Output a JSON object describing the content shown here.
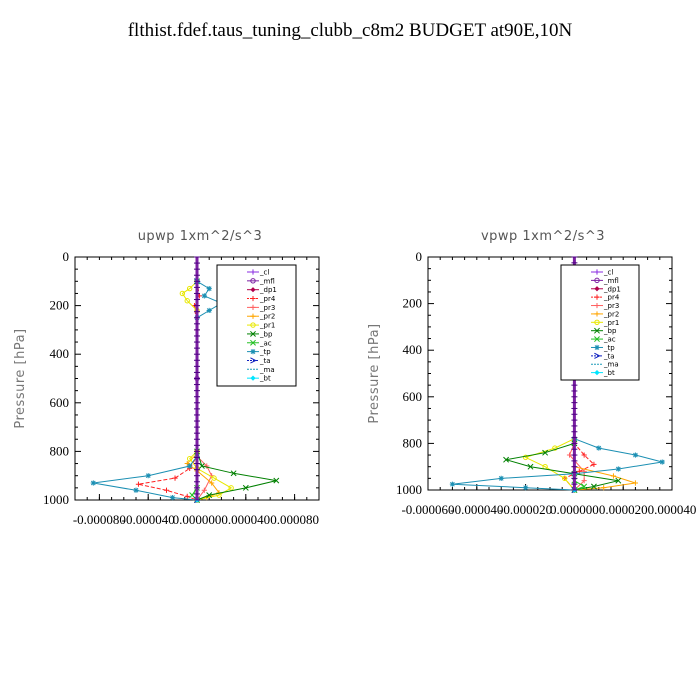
{
  "title": "flthist.fdef.taus_tuning_clubb_c8m2  BUDGET at90E,10N",
  "chart_data": [
    {
      "type": "line",
      "title": "upwp   1xm^2/s^3",
      "ylabel": "Pressure [hPa]",
      "ylim": [
        1000,
        0
      ],
      "xlim": [
        -0.0001,
        0.0001
      ],
      "x_ticks": [
        -8e-05,
        -4e-05,
        0.0,
        4e-05,
        8e-05
      ],
      "x_tick_labels": [
        "-0.000080",
        "-0.000040",
        "0.000000",
        "0.000040",
        "0.000080"
      ],
      "y_ticks": [
        0,
        200,
        400,
        600,
        800,
        1000
      ],
      "y_tick_labels": [
        "0",
        "200",
        "400",
        "600",
        "800",
        "1000"
      ],
      "legend_position": "top-right",
      "series": [
        {
          "name": "_cl",
          "color": "#8a2be2",
          "marker": "plus",
          "dash": "",
          "points": [
            [
              0,
              100
            ],
            [
              0,
              500
            ],
            [
              0,
              1000
            ]
          ]
        },
        {
          "name": "_mfl",
          "color": "#7a1fa2",
          "marker": "circle",
          "dash": "",
          "points": [
            [
              0,
              100
            ],
            [
              0,
              500
            ],
            [
              0,
              1000
            ]
          ]
        },
        {
          "name": "_dp1",
          "color": "#b0004c",
          "marker": "diamond",
          "dash": "",
          "points": [
            [
              0,
              100
            ],
            [
              0,
              800
            ],
            [
              0,
              1000
            ]
          ]
        },
        {
          "name": "_pr4",
          "color": "#ff2020",
          "marker": "plus",
          "dash": "4,2",
          "points": [
            [
              0,
              100
            ],
            [
              2e-06,
              160
            ],
            [
              -2e-06,
              200
            ],
            [
              0,
              300
            ],
            [
              0,
              820
            ],
            [
              -6e-06,
              870
            ],
            [
              -1.8e-05,
              910
            ],
            [
              -4.8e-05,
              935
            ],
            [
              -2.5e-05,
              960
            ],
            [
              -8e-06,
              985
            ],
            [
              0,
              1000
            ]
          ]
        },
        {
          "name": "_pr3",
          "color": "#ff6060",
          "marker": "plus",
          "dash": "",
          "points": [
            [
              0,
              100
            ],
            [
              0,
              820
            ],
            [
              8e-06,
              860
            ],
            [
              1.2e-05,
              900
            ],
            [
              6e-06,
              960
            ],
            [
              0,
              1000
            ]
          ]
        },
        {
          "name": "_pr2",
          "color": "#ffa500",
          "marker": "plus",
          "dash": "",
          "points": [
            [
              0,
              100
            ],
            [
              0,
              810
            ],
            [
              -8e-06,
              850
            ],
            [
              0,
              880
            ],
            [
              1.2e-05,
              930
            ],
            [
              1.8e-05,
              970
            ],
            [
              8e-06,
              990
            ],
            [
              0,
              1000
            ]
          ]
        },
        {
          "name": "_pr1",
          "color": "#e8e800",
          "marker": "circle",
          "dash": "",
          "points": [
            [
              0,
              100
            ],
            [
              -6e-06,
              130
            ],
            [
              -1.2e-05,
              150
            ],
            [
              -8e-06,
              180
            ],
            [
              0,
              220
            ],
            [
              0,
              800
            ],
            [
              -6e-06,
              830
            ],
            [
              0,
              870
            ],
            [
              1.4e-05,
              910
            ],
            [
              2.8e-05,
              950
            ],
            [
              1.8e-05,
              980
            ],
            [
              0,
              1000
            ]
          ]
        },
        {
          "name": "_bp",
          "color": "#008000",
          "marker": "cross",
          "dash": "",
          "points": [
            [
              0,
              100
            ],
            [
              0,
              800
            ],
            [
              4e-06,
              860
            ],
            [
              3e-05,
              890
            ],
            [
              6.5e-05,
              920
            ],
            [
              4e-05,
              950
            ],
            [
              1e-05,
              980
            ],
            [
              0,
              1000
            ]
          ]
        },
        {
          "name": "_ac",
          "color": "#22c022",
          "marker": "cross",
          "dash": "",
          "points": [
            [
              0,
              100
            ],
            [
              0,
              950
            ],
            [
              -4e-06,
              980
            ],
            [
              0,
              1000
            ]
          ]
        },
        {
          "name": "_tp",
          "color": "#1b8fb3",
          "marker": "star",
          "dash": "",
          "points": [
            [
              0,
              100
            ],
            [
              1e-05,
              130
            ],
            [
              6e-06,
              160
            ],
            [
              2e-05,
              190
            ],
            [
              1e-05,
              220
            ],
            [
              0,
              250
            ],
            [
              0,
              820
            ],
            [
              -6e-06,
              860
            ],
            [
              -4e-05,
              900
            ],
            [
              -8.5e-05,
              930
            ],
            [
              -5e-05,
              960
            ],
            [
              -2e-05,
              990
            ],
            [
              0,
              1000
            ]
          ]
        },
        {
          "name": "_ta",
          "color": "#1020c0",
          "marker": "arrow",
          "dash": "4,2",
          "points": [
            [
              0,
              100
            ],
            [
              0,
              1000
            ]
          ]
        },
        {
          "name": "_ma",
          "color": "#1f9bb8",
          "marker": "",
          "dash": "6,3",
          "points": [
            [
              0,
              100
            ],
            [
              0,
              1000
            ]
          ]
        },
        {
          "name": "_bt",
          "color": "#00e5ff",
          "marker": "diamond",
          "dash": "",
          "points": [
            [
              0,
              100
            ],
            [
              0,
              1000
            ]
          ]
        }
      ]
    },
    {
      "type": "line",
      "title": "vpwp   1xm^2/s^3",
      "ylabel": "Pressure [hPa]",
      "ylim": [
        1000,
        0
      ],
      "xlim": [
        -6e-05,
        4e-05
      ],
      "x_ticks": [
        -6e-05,
        -4e-05,
        -2e-05,
        0.0,
        2e-05,
        4e-05
      ],
      "x_tick_labels": [
        "-0.000060",
        "-0.000040",
        "-0.000020",
        "0.000000",
        "0.000020",
        "0.000040"
      ],
      "y_ticks": [
        0,
        200,
        400,
        600,
        800,
        1000
      ],
      "y_tick_labels": [
        "0",
        "200",
        "400",
        "600",
        "800",
        "1000"
      ],
      "legend_position": "top-right",
      "series": [
        {
          "name": "_cl",
          "color": "#8a2be2",
          "marker": "plus",
          "dash": "",
          "points": [
            [
              0,
              100
            ],
            [
              0,
              500
            ],
            [
              0,
              1000
            ]
          ]
        },
        {
          "name": "_mfl",
          "color": "#7a1fa2",
          "marker": "circle",
          "dash": "",
          "points": [
            [
              0,
              100
            ],
            [
              0,
              500
            ],
            [
              0,
              1000
            ]
          ]
        },
        {
          "name": "_dp1",
          "color": "#b0004c",
          "marker": "diamond",
          "dash": "",
          "points": [
            [
              0,
              100
            ],
            [
              0,
              800
            ],
            [
              0,
              1000
            ]
          ]
        },
        {
          "name": "_pr4",
          "color": "#ff2020",
          "marker": "plus",
          "dash": "4,2",
          "points": [
            [
              0,
              100
            ],
            [
              0,
              800
            ],
            [
              4e-06,
              850
            ],
            [
              8e-06,
              890
            ],
            [
              2e-06,
              920
            ],
            [
              -4e-06,
              950
            ],
            [
              0,
              1000
            ]
          ]
        },
        {
          "name": "_pr3",
          "color": "#ff6060",
          "marker": "plus",
          "dash": "",
          "points": [
            [
              0,
              100
            ],
            [
              2e-06,
              150
            ],
            [
              0,
              220
            ],
            [
              0,
              800
            ],
            [
              -2e-06,
              850
            ],
            [
              4e-06,
              920
            ],
            [
              4e-06,
              960
            ],
            [
              0,
              1000
            ]
          ]
        },
        {
          "name": "_pr2",
          "color": "#ffa500",
          "marker": "plus",
          "dash": "",
          "points": [
            [
              0,
              100
            ],
            [
              0,
              900
            ],
            [
              1.6e-05,
              940
            ],
            [
              2.5e-05,
              970
            ],
            [
              1.2e-05,
              990
            ],
            [
              0,
              1000
            ]
          ]
        },
        {
          "name": "_pr1",
          "color": "#e8e800",
          "marker": "circle",
          "dash": "",
          "points": [
            [
              0,
              100
            ],
            [
              -4e-06,
              150
            ],
            [
              -2e-06,
              200
            ],
            [
              0,
              250
            ],
            [
              0,
              780
            ],
            [
              -8e-06,
              820
            ],
            [
              -2e-05,
              860
            ],
            [
              -1.2e-05,
              900
            ],
            [
              -4e-06,
              950
            ],
            [
              0,
              1000
            ]
          ]
        },
        {
          "name": "_bp",
          "color": "#008000",
          "marker": "cross",
          "dash": "",
          "points": [
            [
              0,
              100
            ],
            [
              -4e-06,
              160
            ],
            [
              -2e-06,
              200
            ],
            [
              0,
              250
            ],
            [
              0,
              800
            ],
            [
              -1.2e-05,
              840
            ],
            [
              -2.8e-05,
              870
            ],
            [
              -1.8e-05,
              900
            ],
            [
              0,
              930
            ],
            [
              1.8e-05,
              960
            ],
            [
              8e-06,
              985
            ],
            [
              0,
              1000
            ]
          ]
        },
        {
          "name": "_ac",
          "color": "#22c022",
          "marker": "cross",
          "dash": "",
          "points": [
            [
              0,
              100
            ],
            [
              0,
              960
            ],
            [
              4e-06,
              985
            ],
            [
              0,
              1000
            ]
          ]
        },
        {
          "name": "_tp",
          "color": "#1b8fb3",
          "marker": "star",
          "dash": "",
          "points": [
            [
              0,
              100
            ],
            [
              0,
              780
            ],
            [
              1e-05,
              820
            ],
            [
              2.5e-05,
              850
            ],
            [
              3.6e-05,
              880
            ],
            [
              1.8e-05,
              910
            ],
            [
              0,
              930
            ],
            [
              -3e-05,
              950
            ],
            [
              -5e-05,
              975
            ],
            [
              -2e-05,
              990
            ],
            [
              0,
              1000
            ]
          ]
        },
        {
          "name": "_ta",
          "color": "#1020c0",
          "marker": "arrow",
          "dash": "4,2",
          "points": [
            [
              0,
              100
            ],
            [
              0,
              1000
            ]
          ]
        },
        {
          "name": "_ma",
          "color": "#1f9bb8",
          "marker": "",
          "dash": "6,3",
          "points": [
            [
              0,
              100
            ],
            [
              0,
              1000
            ]
          ]
        },
        {
          "name": "_bt",
          "color": "#00e5ff",
          "marker": "diamond",
          "dash": "",
          "points": [
            [
              0,
              100
            ],
            [
              0,
              1000
            ]
          ]
        }
      ]
    }
  ]
}
